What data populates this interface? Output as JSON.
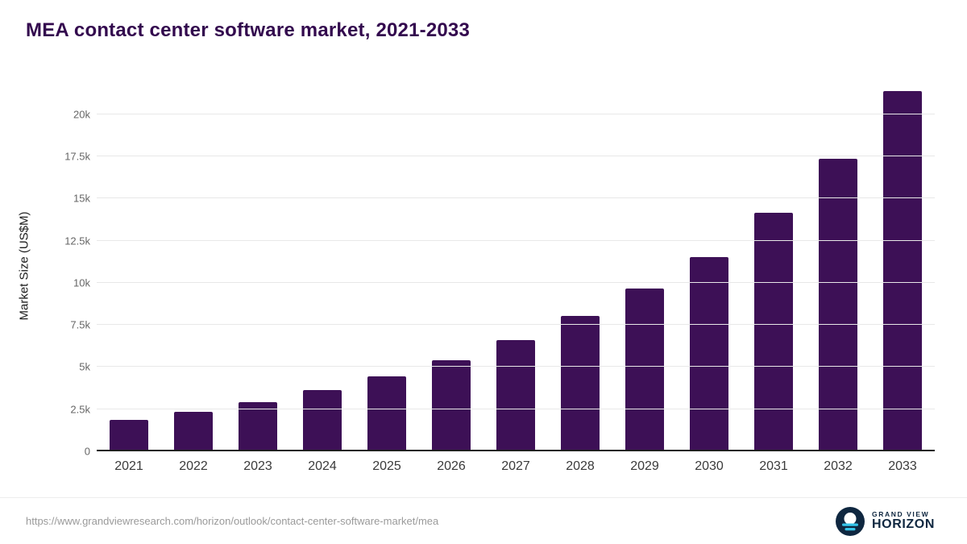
{
  "title": "MEA contact center software market, 2021-2033",
  "chart_data": {
    "type": "bar",
    "title": "MEA contact center software market, 2021-2033",
    "categories": [
      "2021",
      "2022",
      "2023",
      "2024",
      "2025",
      "2026",
      "2027",
      "2028",
      "2029",
      "2030",
      "2031",
      "2032",
      "2033"
    ],
    "values": [
      1850,
      2350,
      2900,
      3650,
      4450,
      5400,
      6600,
      8050,
      9650,
      11550,
      14150,
      17350,
      21400
    ],
    "xlabel": "",
    "ylabel": "Market Size (US$M)",
    "ylim": [
      0,
      22000
    ],
    "yticks": [
      0,
      2500,
      5000,
      7500,
      10000,
      12500,
      15000,
      17500,
      20000
    ],
    "ytick_labels": [
      "0",
      "2.5k",
      "5k",
      "7.5k",
      "10k",
      "12.5k",
      "15k",
      "17.5k",
      "20k"
    ],
    "legend": "none",
    "grid": "horizontal",
    "bar_color": "#3d1056"
  },
  "colors": {
    "title": "#33094e",
    "bar": "#3d1056",
    "gridline": "#e8e8e8",
    "axis_line": "#1f1f1f",
    "tick_text": "#666666",
    "footer_text": "#9a9a9a",
    "logo_navy": "#0f2740",
    "logo_cyan": "#35c4ea"
  },
  "footer": {
    "source_url": "https://www.grandviewresearch.com/horizon/outlook/contact-center-software-market/mea",
    "logo": {
      "line1": "GRAND VIEW",
      "line2": "HORIZON"
    }
  }
}
